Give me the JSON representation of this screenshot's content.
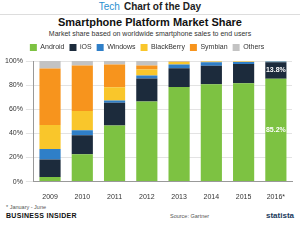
{
  "chart_data": {
    "type": "bar",
    "stacked": true,
    "grid": true,
    "legend": "top",
    "title": "Smartphone Platform Market Share",
    "subtitle": "Market share based on worldwide smartphone sales to end users",
    "note": "* January - June",
    "source": "Source: Gartner",
    "categories": [
      "2009",
      "2010",
      "2011",
      "2012",
      "2013",
      "2014",
      "2015",
      "2016*"
    ],
    "series": [
      {
        "name": "Android",
        "color": "#7dc242",
        "values": [
          3.9,
          22.7,
          46.5,
          66.4,
          78.4,
          80.7,
          81.6,
          85.2
        ],
        "value_labels": [
          null,
          null,
          null,
          null,
          null,
          null,
          null,
          "85.2%"
        ]
      },
      {
        "name": "iOS",
        "color": "#1c2b3c",
        "values": [
          14.4,
          15.7,
          18.9,
          19.1,
          15.6,
          15.4,
          15.9,
          13.8
        ],
        "value_labels": [
          null,
          null,
          null,
          null,
          null,
          null,
          null,
          "13.8%"
        ]
      },
      {
        "name": "Windows",
        "color": "#2f7fc8",
        "values": [
          8.7,
          4.2,
          1.9,
          2.5,
          3.2,
          2.8,
          1.7,
          0.6
        ]
      },
      {
        "name": "BlackBerry",
        "color": "#f9c62b",
        "values": [
          19.9,
          16.0,
          11.0,
          5.0,
          1.9,
          0.6,
          0.3,
          0.2
        ]
      },
      {
        "name": "Symbian",
        "color": "#f7941d",
        "values": [
          46.9,
          37.6,
          18.8,
          3.3,
          0.2,
          0.0,
          0.0,
          0.0
        ]
      },
      {
        "name": "Others",
        "color": "#c3c3c3",
        "values": [
          6.2,
          3.8,
          2.9,
          3.7,
          0.7,
          0.5,
          0.5,
          0.2
        ]
      }
    ],
    "ylim": [
      0,
      100
    ],
    "yticks": [
      {
        "value": 0,
        "label": "0%"
      },
      {
        "value": 20,
        "label": "20%"
      },
      {
        "value": 40,
        "label": "40%"
      },
      {
        "value": 60,
        "label": "60%"
      },
      {
        "value": 80,
        "label": "80%"
      },
      {
        "value": 100,
        "label": "100%"
      }
    ]
  },
  "page": {
    "tag": "Tech",
    "banner": "Chart of the Day",
    "brand": "BUSINESS INSIDER",
    "logo": "statista"
  }
}
